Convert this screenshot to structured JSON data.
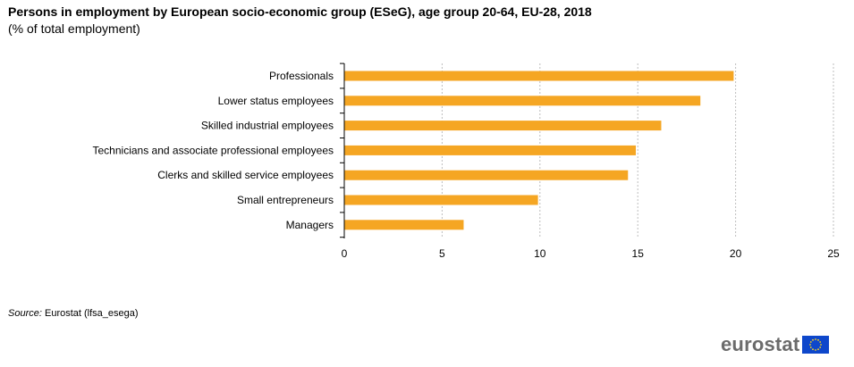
{
  "chart_data": {
    "type": "bar",
    "orientation": "horizontal",
    "title": "Persons in employment by European socio-economic group (ESeG), age group 20-64, EU-28, 2018",
    "subtitle": "(% of total employment)",
    "categories": [
      "Professionals",
      "Lower status employees",
      "Skilled industrial employees",
      "Technicians and associate professional employees",
      "Clerks and skilled service employees",
      "Small entrepreneurs",
      "Managers"
    ],
    "values": [
      19.9,
      18.2,
      16.2,
      14.9,
      14.5,
      9.9,
      6.1
    ],
    "xlim": [
      0,
      25
    ],
    "xticks": [
      0,
      5,
      10,
      15,
      20,
      25
    ],
    "xlabel": "",
    "ylabel": "",
    "grid": "vertical dashed",
    "bar_color": "#F5A623"
  },
  "source": {
    "prefix": "Source:",
    "text": "Eurostat (lfsa_esega)"
  },
  "logo": {
    "text": "eurostat",
    "flag_color": "#0E47CB",
    "star_color": "#FFD617"
  }
}
